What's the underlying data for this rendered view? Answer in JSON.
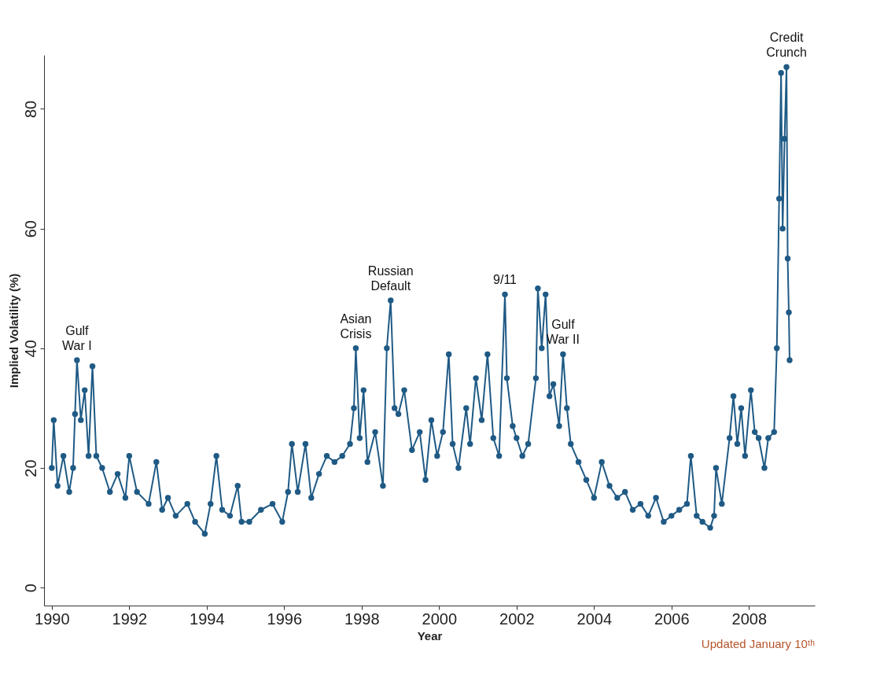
{
  "chart_data": {
    "type": "line",
    "xlabel": "Year",
    "ylabel": "Implied Volatility (%)",
    "x": [
      1990.0,
      1990.05,
      1990.15,
      1990.3,
      1990.45,
      1990.55,
      1990.6,
      1990.65,
      1990.75,
      1990.85,
      1990.95,
      1991.05,
      1991.15,
      1991.3,
      1991.5,
      1991.7,
      1991.9,
      1992.0,
      1992.2,
      1992.5,
      1992.7,
      1992.85,
      1993.0,
      1993.2,
      1993.5,
      1993.7,
      1993.95,
      1994.1,
      1994.25,
      1994.4,
      1994.6,
      1994.8,
      1994.9,
      1995.1,
      1995.4,
      1995.7,
      1995.95,
      1996.1,
      1996.2,
      1996.35,
      1996.55,
      1996.7,
      1996.9,
      1997.1,
      1997.3,
      1997.5,
      1997.7,
      1997.8,
      1997.85,
      1997.95,
      1998.05,
      1998.15,
      1998.35,
      1998.55,
      1998.65,
      1998.75,
      1998.85,
      1998.95,
      1999.1,
      1999.3,
      1999.5,
      1999.65,
      1999.8,
      1999.95,
      2000.1,
      2000.25,
      2000.35,
      2000.5,
      2000.7,
      2000.8,
      2000.95,
      2001.1,
      2001.25,
      2001.4,
      2001.55,
      2001.7,
      2001.75,
      2001.9,
      2002.0,
      2002.15,
      2002.3,
      2002.5,
      2002.55,
      2002.65,
      2002.75,
      2002.85,
      2002.95,
      2003.1,
      2003.2,
      2003.3,
      2003.4,
      2003.6,
      2003.8,
      2004.0,
      2004.2,
      2004.4,
      2004.6,
      2004.8,
      2005.0,
      2005.2,
      2005.4,
      2005.6,
      2005.8,
      2006.0,
      2006.2,
      2006.4,
      2006.5,
      2006.65,
      2006.8,
      2007.0,
      2007.1,
      2007.15,
      2007.3,
      2007.5,
      2007.6,
      2007.7,
      2007.8,
      2007.9,
      2008.05,
      2008.15,
      2008.25,
      2008.4,
      2008.5,
      2008.65,
      2008.72,
      2008.78,
      2008.83,
      2008.87,
      2008.92,
      2008.97,
      2009.0,
      2009.03,
      2009.05
    ],
    "series": [
      {
        "color": "#1f5a85",
        "values": [
          20,
          28,
          17,
          22,
          16,
          20,
          29,
          38,
          28,
          33,
          22,
          37,
          22,
          20,
          16,
          19,
          15,
          22,
          16,
          14,
          21,
          13,
          15,
          12,
          14,
          11,
          9,
          14,
          22,
          13,
          12,
          17,
          11,
          11,
          13,
          14,
          11,
          16,
          24,
          16,
          24,
          15,
          19,
          22,
          21,
          22,
          24,
          30,
          40,
          25,
          33,
          21,
          26,
          17,
          40,
          48,
          30,
          29,
          33,
          23,
          26,
          18,
          28,
          22,
          26,
          39,
          24,
          20,
          30,
          24,
          35,
          28,
          39,
          25,
          22,
          49,
          35,
          27,
          25,
          22,
          24,
          35,
          50,
          40,
          49,
          32,
          34,
          27,
          39,
          30,
          24,
          21,
          18,
          15,
          21,
          17,
          15,
          16,
          13,
          14,
          12,
          15,
          11,
          12,
          13,
          14,
          22,
          12,
          11,
          10,
          12,
          20,
          14,
          25,
          32,
          24,
          30,
          22,
          33,
          26,
          25,
          20,
          25,
          26,
          40,
          65,
          86,
          60,
          75,
          87,
          55,
          46,
          38
        ]
      }
    ],
    "xlim": [
      1989.8,
      2009.7
    ],
    "xticks": [
      1990,
      1992,
      1994,
      1996,
      1998,
      2000,
      2002,
      2004,
      2006,
      2008
    ],
    "ylim": [
      -3,
      89
    ],
    "yticks": [
      0,
      20,
      40,
      60,
      80
    ],
    "marker": "circle",
    "line_style": "solid",
    "grid": false,
    "legend": false,
    "annotations": [
      {
        "text": "Gulf War I",
        "x": 1990.65,
        "y": 38
      },
      {
        "text": "Asian Crisis",
        "x": 1997.85,
        "y": 40
      },
      {
        "text": "Russian Default",
        "x": 1998.75,
        "y": 48
      },
      {
        "text": "9/11",
        "x": 2001.7,
        "y": 49
      },
      {
        "text": "Gulf War II",
        "x": 2003.2,
        "y": 39
      },
      {
        "text": "Credit Crunch",
        "x": 2008.97,
        "y": 87
      },
      "Updated January 10ᵗʰ"
    ]
  }
}
